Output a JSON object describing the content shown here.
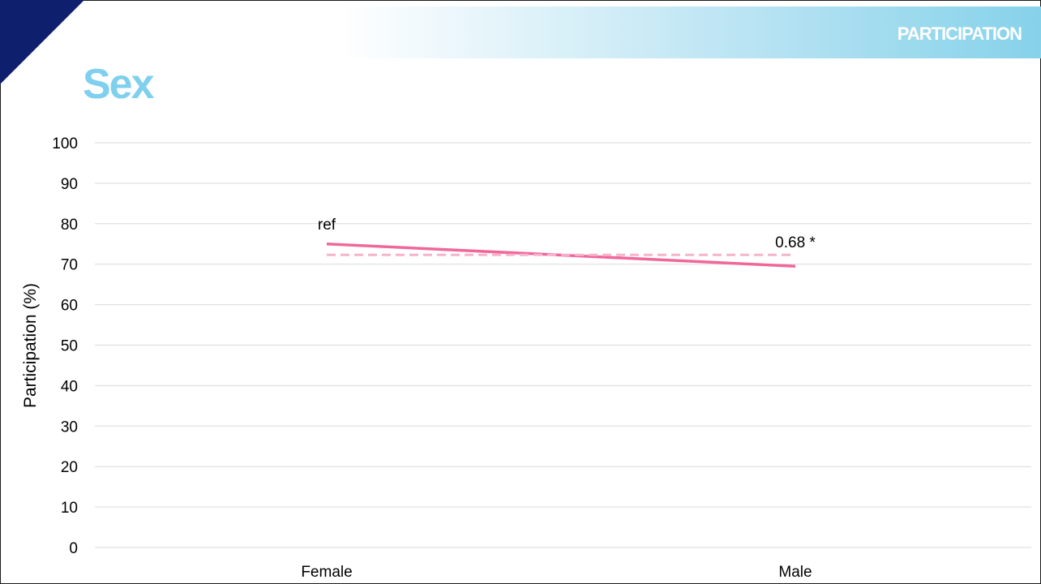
{
  "header": {
    "section_label": "PARTICIPATION",
    "title": "Sex"
  },
  "colors": {
    "brand_navy": "#0e1f6e",
    "accent_light_blue": "#7fd0ee",
    "series_line": "#f0689a",
    "reference_line": "#f6b3cc",
    "gridline": "#d9d9d9"
  },
  "chart_data": {
    "type": "line",
    "categories": [
      "Female",
      "Male"
    ],
    "series": [
      {
        "values": [
          75,
          69.5
        ],
        "style": "solid"
      },
      {
        "values": [
          72.3,
          72.3
        ],
        "style": "dashed"
      }
    ],
    "annotations": [
      {
        "text": "ref",
        "category": "Female"
      },
      {
        "text": "0.68 *",
        "category": "Male"
      }
    ],
    "ylabel": "Participation (%)",
    "xlabel": "",
    "ylim": [
      0,
      100
    ],
    "yticks": [
      0,
      10,
      20,
      30,
      40,
      50,
      60,
      70,
      80,
      90,
      100
    ],
    "grid": true,
    "legend": "none"
  }
}
